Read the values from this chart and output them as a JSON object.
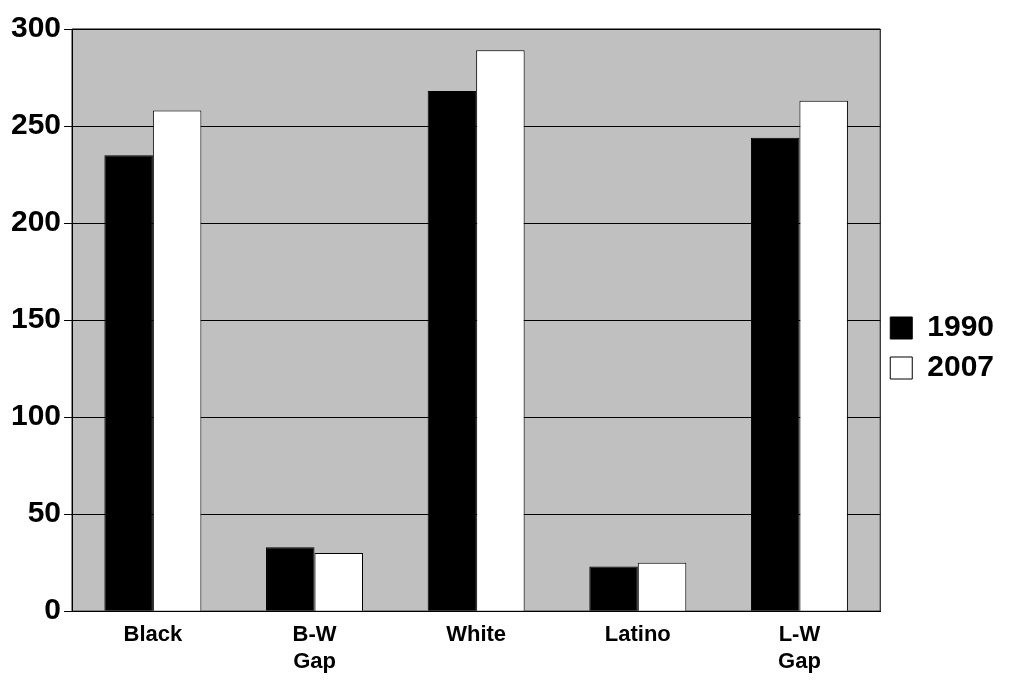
{
  "chart_data": {
    "type": "bar",
    "categories": [
      "Black",
      "B-W Gap",
      "White",
      "Latino",
      "L-W Gap"
    ],
    "series": [
      {
        "name": "1990",
        "color": "#000000",
        "values": [
          235,
          33,
          268,
          23,
          244
        ]
      },
      {
        "name": "2007",
        "color": "#ffffff",
        "values": [
          258,
          30,
          289,
          25,
          263
        ]
      }
    ],
    "ylim": [
      0,
      300
    ],
    "yticks": [
      0,
      50,
      100,
      150,
      200,
      250,
      300
    ],
    "grid": "y",
    "legend": "right"
  }
}
